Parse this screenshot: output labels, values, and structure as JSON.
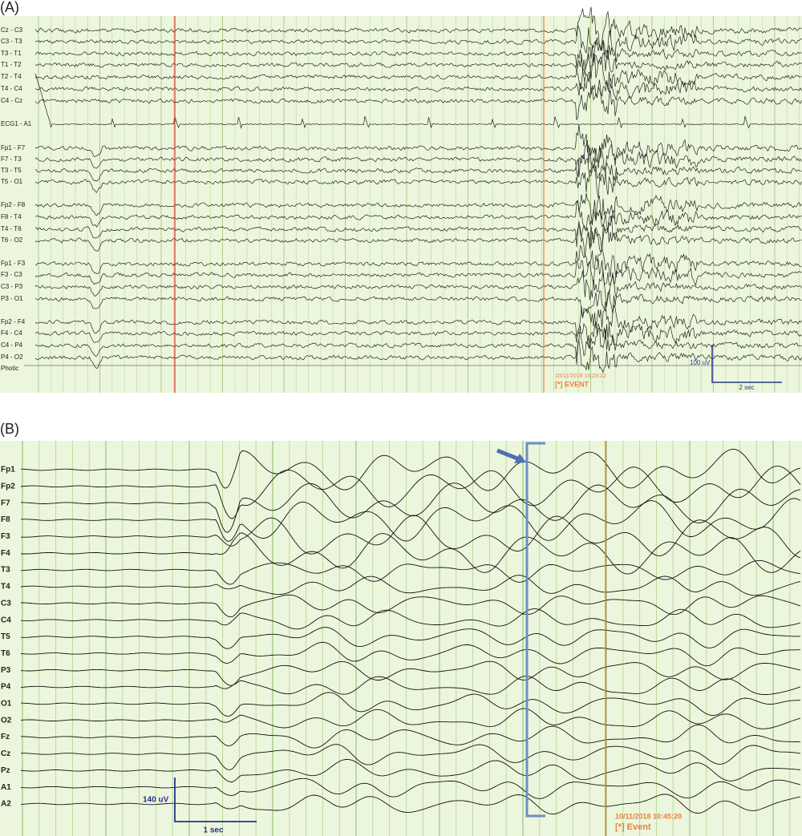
{
  "panel_a": {
    "label": "(A)",
    "channels": [
      "Cz - C3",
      "C3 - T3",
      "T3 - T1",
      "T1 - T2",
      "T2 - T4",
      "T4 - C4",
      "C4 - Cz",
      "ECG1 - A1",
      "Fp1 - F7",
      "F7 - T3",
      "T3 - T5",
      "T5 - O1",
      "Fp2 - F8",
      "F8 - T4",
      "T4 - T6",
      "T6 - O2",
      "Fp1 - F3",
      "F3 - C3",
      "C3 - P3",
      "P3 - O1",
      "Fp2 - F4",
      "F4 - C4",
      "C4 - P4",
      "P4 - O2",
      "Photic"
    ],
    "scale_amplitude": "100 uV",
    "scale_time": "2 sec",
    "event_time": "10/11/2018 16:23:22",
    "event_label": "[*] EVENT"
  },
  "panel_b": {
    "label": "(B)",
    "channels": [
      "Fp1",
      "Fp2",
      "F7",
      "F8",
      "F3",
      "F4",
      "T3",
      "T4",
      "C3",
      "C4",
      "T5",
      "T6",
      "P3",
      "P4",
      "O1",
      "O2",
      "Fz",
      "Cz",
      "Pz",
      "A1",
      "A2"
    ],
    "scale_amplitude": "140 uV",
    "scale_time": "1 sec",
    "event_time": "10/11/2018 10:45:20",
    "event_label": "[*] Event"
  }
}
